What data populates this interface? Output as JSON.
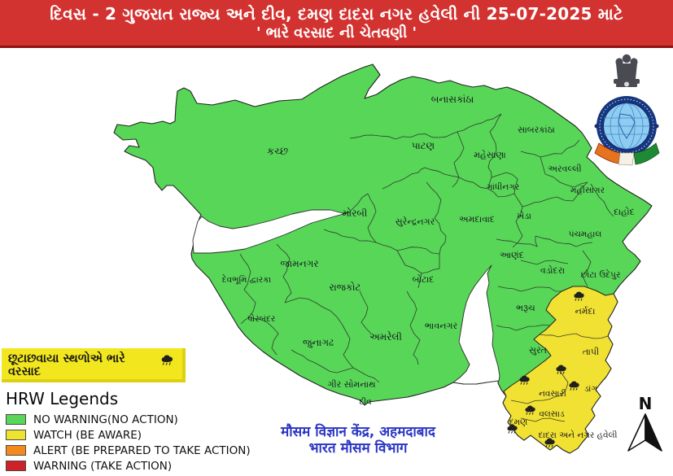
{
  "header": {
    "line1": "દિવસ - 2 ગુજરાત રાજ્ય અને દીવ, દમણ દાદરા નગર હવેલી ની 25-07-2025 માટે",
    "line2": "' ભારે વરસાદ ની ચેતવણી '",
    "bg_color": "#d23230"
  },
  "logo": {
    "icon": "imd-emblem-logo"
  },
  "annotation_box": {
    "text": "છૂટાછવાયા સ્થળોએ ભારે વરસાદ",
    "icon": "rain-cloud-icon",
    "bg_color": "#f2e71e"
  },
  "legend": {
    "title": "HRW Legends",
    "items": [
      {
        "key": "no_warning",
        "label": "NO WARNING(NO ACTION)",
        "color": "#57d657"
      },
      {
        "key": "watch",
        "label": "WATCH (BE AWARE)",
        "color": "#eee32e"
      },
      {
        "key": "alert",
        "label": "ALERT (BE PREPARED TO TAKE ACTION)",
        "color": "#f28a1e"
      },
      {
        "key": "warning",
        "label": "WARNING (TAKE ACTION)",
        "color": "#cf2128"
      }
    ]
  },
  "footer": {
    "line1": "मौसम विज्ञान केंद्र, अहमदाबाद",
    "line2": "भारत मौसम विभाग",
    "color": "#2a35c4"
  },
  "compass": {
    "label": "N"
  },
  "map": {
    "status_colors": {
      "no_warning": "#57d657",
      "watch": "#f0e132"
    },
    "districts": [
      {
        "id": "kutch",
        "name": "કચ્છ",
        "status": "no_warning"
      },
      {
        "id": "banaskantha",
        "name": "બનાસકાંઠા",
        "status": "no_warning"
      },
      {
        "id": "patan",
        "name": "પાટણ",
        "status": "no_warning"
      },
      {
        "id": "sabarkantha",
        "name": "સાબરકાંઠા",
        "status": "no_warning"
      },
      {
        "id": "mehsana",
        "name": "મહેસાણા",
        "status": "no_warning"
      },
      {
        "id": "aravalli",
        "name": "અરવલ્લી",
        "status": "no_warning"
      },
      {
        "id": "gandhinagar",
        "name": "ગાંધીનગર",
        "status": "no_warning"
      },
      {
        "id": "mahisagar",
        "name": "મહીસાગર",
        "status": "no_warning"
      },
      {
        "id": "morbi",
        "name": "મોરબી",
        "status": "no_warning"
      },
      {
        "id": "surendranagar",
        "name": "સુરેન્દ્રનગર",
        "status": "no_warning"
      },
      {
        "id": "ahmedabad",
        "name": "અમદાવાદ",
        "status": "no_warning"
      },
      {
        "id": "kheda",
        "name": "ખેડા",
        "status": "no_warning"
      },
      {
        "id": "dahod",
        "name": "દાહોદ",
        "status": "no_warning"
      },
      {
        "id": "panchmahal",
        "name": "પંચમહાલ",
        "status": "no_warning"
      },
      {
        "id": "jamnagar",
        "name": "જામનગર",
        "status": "no_warning"
      },
      {
        "id": "devbhumi_dwarka",
        "name": "દેવભૂમિ દ્વારકા",
        "status": "no_warning"
      },
      {
        "id": "anand",
        "name": "આણંદ",
        "status": "no_warning"
      },
      {
        "id": "vadodara",
        "name": "વડોદરા",
        "status": "no_warning"
      },
      {
        "id": "chhota_udepur",
        "name": "છોટા ઉદેપુર",
        "status": "no_warning"
      },
      {
        "id": "rajkot",
        "name": "રાજકોટ",
        "status": "no_warning"
      },
      {
        "id": "botad",
        "name": "બોટાદ",
        "status": "no_warning"
      },
      {
        "id": "bharuch",
        "name": "ભરૂચ",
        "status": "no_warning"
      },
      {
        "id": "narmada",
        "name": "નર્મદા",
        "status": "watch"
      },
      {
        "id": "porbandar",
        "name": "પોરબંદર",
        "status": "no_warning"
      },
      {
        "id": "junagadh",
        "name": "જુનાગઢ",
        "status": "no_warning"
      },
      {
        "id": "amreli",
        "name": "અમરેલી",
        "status": "no_warning"
      },
      {
        "id": "bhavnagar",
        "name": "ભાવનગર",
        "status": "no_warning"
      },
      {
        "id": "surat",
        "name": "સુરત",
        "status": "no_warning"
      },
      {
        "id": "tapi",
        "name": "તાપી",
        "status": "watch"
      },
      {
        "id": "gir_somnath",
        "name": "ગીર સોમનાથ",
        "status": "no_warning"
      },
      {
        "id": "diu",
        "name": "દીવ",
        "status": "no_warning"
      },
      {
        "id": "navsari",
        "name": "નવસારી",
        "status": "watch"
      },
      {
        "id": "dang",
        "name": "ડાંગ",
        "status": "watch"
      },
      {
        "id": "valsad",
        "name": "વલસાડ",
        "status": "watch"
      },
      {
        "id": "daman",
        "name": "દમણ",
        "status": "watch"
      },
      {
        "id": "dnh",
        "name": "દાદરા અને નગર હવેલી",
        "status": "watch"
      }
    ],
    "rain_marker_districts": [
      "narmada",
      "tapi",
      "navsari",
      "dang",
      "valsad",
      "daman",
      "dnh"
    ]
  }
}
